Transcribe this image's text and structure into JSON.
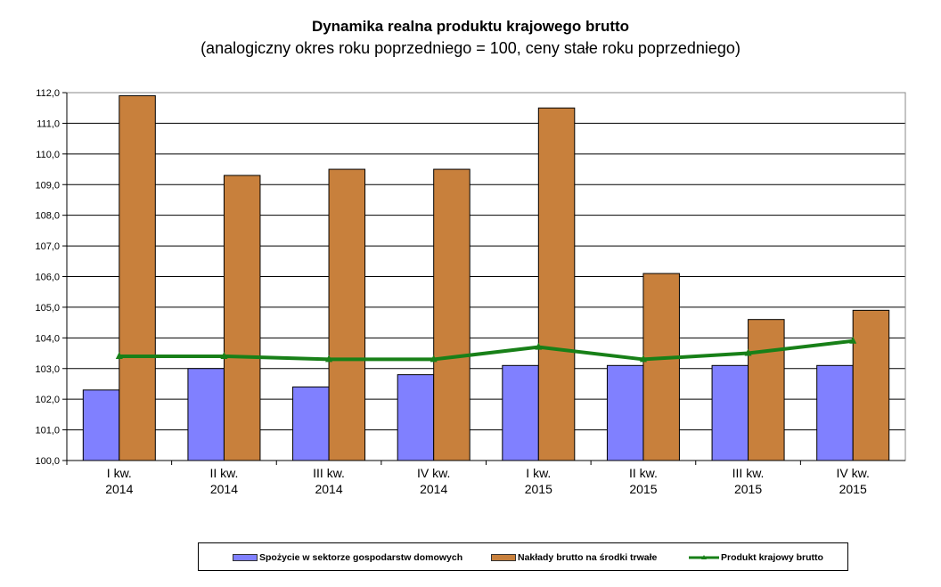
{
  "chart_data": {
    "type": "bar",
    "title": "Dynamika realna produktu krajowego brutto",
    "subtitle": "(analogiczny okres roku poprzedniego = 100, ceny stałe roku poprzedniego)",
    "categories": [
      [
        "I kw.",
        "2014"
      ],
      [
        "II kw.",
        "2014"
      ],
      [
        "III kw.",
        "2014"
      ],
      [
        "IV kw.",
        "2014"
      ],
      [
        "I kw.",
        "2015"
      ],
      [
        "II kw.",
        "2015"
      ],
      [
        "III kw.",
        "2015"
      ],
      [
        "IV kw.",
        "2015"
      ]
    ],
    "ylim": [
      100,
      112
    ],
    "ytick_step": 1,
    "ytick_labels": [
      "100,0",
      "101,0",
      "102,0",
      "103,0",
      "104,0",
      "105,0",
      "106,0",
      "107,0",
      "108,0",
      "109,0",
      "110,0",
      "111,0",
      "112,0"
    ],
    "grid": true,
    "legend_position": "bottom",
    "series": [
      {
        "name": "Spożycie w sektorze gospodarstw domowych",
        "type": "bar",
        "color": "#8080ff",
        "values": [
          102.3,
          103.0,
          102.4,
          102.8,
          103.1,
          103.1,
          103.1,
          103.1
        ]
      },
      {
        "name": "Nakłady brutto na środki trwałe",
        "type": "bar",
        "color": "#c8803c",
        "values": [
          111.9,
          109.3,
          109.5,
          109.5,
          111.5,
          106.1,
          104.6,
          104.9
        ]
      },
      {
        "name": "Produkt krajowy brutto",
        "type": "line",
        "color": "#188018",
        "values": [
          103.4,
          103.4,
          103.3,
          103.3,
          103.7,
          103.3,
          103.5,
          103.9
        ]
      }
    ]
  }
}
